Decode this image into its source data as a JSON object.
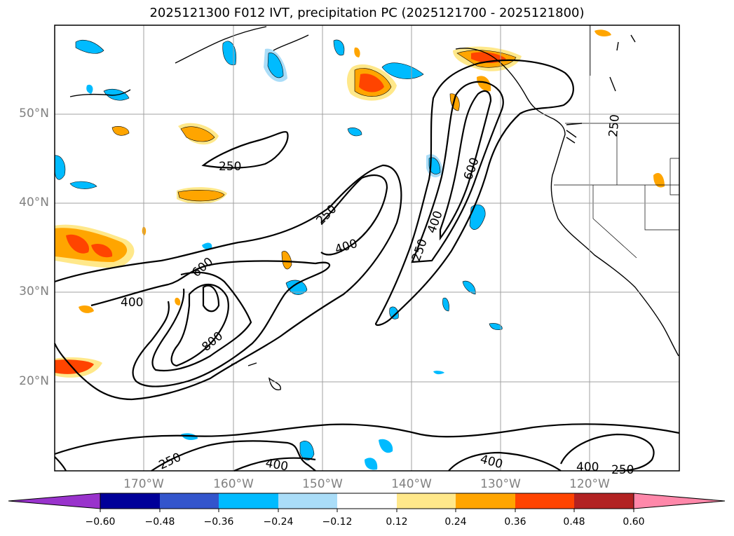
{
  "title": "2025121300 F012 IVT, precipitation PC (2025121700 - 2025121800)",
  "lat_labels": [
    "50°N",
    "40°N",
    "30°N",
    "20°N"
  ],
  "lon_labels": [
    "170°W",
    "160°W",
    "150°W",
    "140°W",
    "130°W",
    "120°W"
  ],
  "contour_labels": [
    "250",
    "250",
    "250",
    "250",
    "250",
    "250",
    "400",
    "400",
    "400",
    "400",
    "400",
    "400",
    "600",
    "600",
    "800"
  ],
  "colorbar": {
    "labels": [
      "−0.60",
      "−0.48",
      "−0.36",
      "−0.24",
      "−0.12",
      "0.12",
      "0.24",
      "0.36",
      "0.48",
      "0.60"
    ],
    "colors": [
      "#9933cc",
      "#000099",
      "#3355cc",
      "#00bbff",
      "#aaddf8",
      "#ffffff",
      "#ffe88a",
      "#ffa500",
      "#ff4400",
      "#b22222",
      "#ff88aa"
    ],
    "extend": "both"
  },
  "map": {
    "lat_range": [
      10,
      60
    ],
    "lon_range": [
      -180,
      -110
    ],
    "grid": true,
    "ivt_contour_levels": [
      250,
      400,
      600,
      800
    ]
  }
}
